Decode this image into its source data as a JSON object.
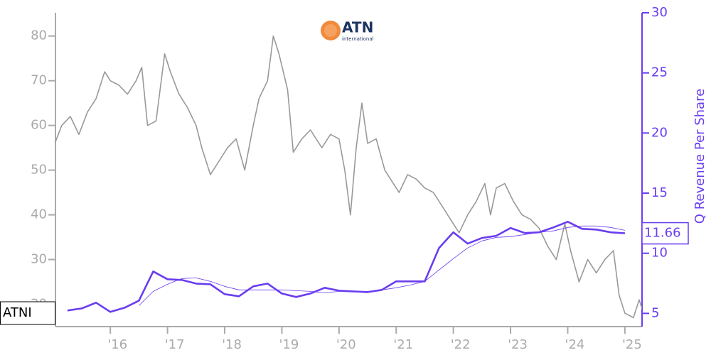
{
  "chart_data": {
    "type": "line",
    "logo_text": "ATN",
    "logo_subtext": "international",
    "y2label": "Q Revenue Per Share",
    "xlim": [
      2015.04,
      2025.3
    ],
    "xticks": [
      {
        "value": 2016,
        "label": "'16"
      },
      {
        "value": 2017,
        "label": "'17"
      },
      {
        "value": 2018,
        "label": "'18"
      },
      {
        "value": 2019,
        "label": "'19"
      },
      {
        "value": 2020,
        "label": "'20"
      },
      {
        "value": 2021,
        "label": "'21"
      },
      {
        "value": 2022,
        "label": "'22"
      },
      {
        "value": 2023,
        "label": "'23"
      },
      {
        "value": 2024,
        "label": "'24"
      },
      {
        "value": 2025,
        "label": "'25"
      }
    ],
    "ylim": [
      15,
      85.2
    ],
    "yticks": [
      20,
      30,
      40,
      50,
      60,
      70,
      80
    ],
    "y2lim": [
      3.9,
      30
    ],
    "y2ticks": [
      5,
      10,
      15,
      20,
      25,
      30
    ],
    "series": [
      {
        "name": "ATNI",
        "color": "#999999",
        "axis": "y",
        "x": [
          2015.0,
          2015.15,
          2015.3,
          2015.45,
          2015.6,
          2015.75,
          2015.9,
          2016.0,
          2016.15,
          2016.3,
          2016.45,
          2016.55,
          2016.65,
          2016.8,
          2016.95,
          2017.05,
          2017.2,
          2017.35,
          2017.5,
          2017.6,
          2017.75,
          2017.9,
          2018.05,
          2018.2,
          2018.35,
          2018.5,
          2018.6,
          2018.75,
          2018.85,
          2018.95,
          2019.1,
          2019.2,
          2019.35,
          2019.5,
          2019.7,
          2019.85,
          2020.0,
          2020.1,
          2020.2,
          2020.3,
          2020.4,
          2020.5,
          2020.65,
          2020.8,
          2020.9,
          2021.05,
          2021.2,
          2021.35,
          2021.5,
          2021.65,
          2021.8,
          2021.95,
          2022.1,
          2022.25,
          2022.4,
          2022.55,
          2022.65,
          2022.75,
          2022.9,
          2023.05,
          2023.2,
          2023.35,
          2023.5,
          2023.65,
          2023.8,
          2023.95,
          2024.05,
          2024.2,
          2024.35,
          2024.5,
          2024.65,
          2024.8,
          2024.9,
          2025.0,
          2025.15,
          2025.25,
          2025.3
        ],
        "values": [
          55,
          60,
          62,
          58,
          63,
          66,
          72,
          70,
          69,
          67,
          70,
          73,
          60,
          61,
          76,
          72,
          67,
          64,
          60,
          55,
          49,
          52,
          55,
          57,
          50,
          60,
          66,
          70,
          80,
          76,
          68,
          54,
          57,
          59,
          55,
          58,
          57,
          50,
          40,
          55,
          65,
          56,
          57,
          50,
          48,
          45,
          49,
          48,
          46,
          45,
          42,
          39,
          36,
          40,
          43,
          47,
          40,
          46,
          47,
          43,
          40,
          39,
          37,
          33,
          30,
          38,
          32,
          25,
          30,
          27,
          30,
          32,
          22,
          18,
          17,
          21,
          19
        ]
      },
      {
        "color": "#6a3df0",
        "axis": "y2",
        "x": [
          2015.25,
          2015.5,
          2015.75,
          2016.0,
          2016.25,
          2016.5,
          2016.75,
          2017.0,
          2017.25,
          2017.5,
          2017.75,
          2018.0,
          2018.25,
          2018.5,
          2018.75,
          2019.0,
          2019.25,
          2019.5,
          2019.75,
          2020.0,
          2020.25,
          2020.5,
          2020.75,
          2021.0,
          2021.25,
          2021.5,
          2021.75,
          2022.0,
          2022.25,
          2022.5,
          2022.75,
          2023.0,
          2023.25,
          2023.5,
          2023.75,
          2024.0,
          2024.25,
          2024.5,
          2024.75,
          2025.0
        ],
        "values": [
          5.24,
          5.41,
          5.89,
          5.12,
          5.47,
          6.06,
          8.49,
          7.84,
          7.78,
          7.48,
          7.42,
          6.6,
          6.42,
          7.25,
          7.48,
          6.65,
          6.36,
          6.65,
          7.13,
          6.89,
          6.83,
          6.77,
          6.95,
          7.66,
          7.66,
          7.66,
          10.44,
          11.74,
          10.8,
          11.27,
          11.45,
          12.1,
          11.68,
          11.74,
          12.15,
          12.62,
          12.03,
          11.97,
          11.74,
          11.66
        ]
      },
      {
        "color": "#6a3df0",
        "axis": "y2",
        "x": [
          2016.5,
          2016.75,
          2017.0,
          2017.25,
          2017.5,
          2017.75,
          2018.0,
          2018.25,
          2018.5,
          2018.75,
          2019.0,
          2019.25,
          2019.5,
          2019.75,
          2020.0,
          2020.25,
          2020.5,
          2020.75,
          2021.0,
          2021.25,
          2021.5,
          2021.75,
          2022.0,
          2022.25,
          2022.5,
          2022.75,
          2023.0,
          2023.25,
          2023.5,
          2023.75,
          2024.0,
          2024.25,
          2024.5,
          2024.75,
          2025.0
        ],
        "values": [
          5.65,
          6.83,
          7.42,
          7.9,
          7.95,
          7.66,
          7.25,
          6.95,
          6.95,
          6.95,
          6.95,
          6.89,
          6.83,
          6.71,
          6.83,
          6.83,
          6.83,
          6.95,
          7.13,
          7.36,
          7.66,
          8.61,
          9.55,
          10.44,
          11.03,
          11.32,
          11.38,
          11.56,
          11.74,
          11.86,
          12.15,
          12.27,
          12.27,
          12.15,
          11.91
        ]
      }
    ]
  }
}
